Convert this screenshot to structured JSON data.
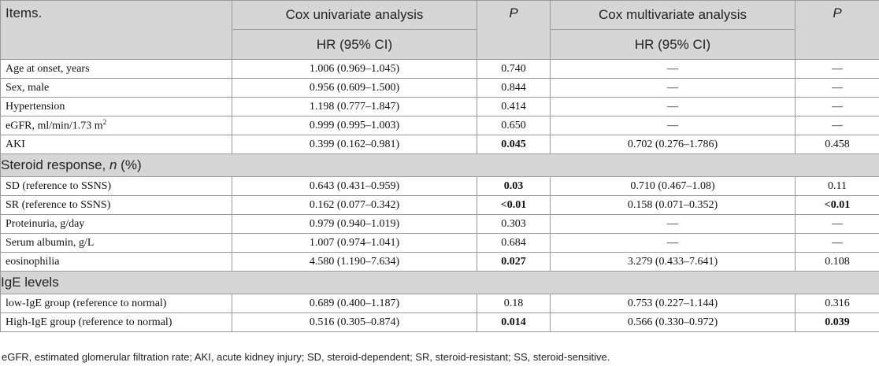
{
  "header": {
    "items": "Items.",
    "uni": "Cox univariate analysis",
    "p1": "P",
    "multi": "Cox multivariate analysis",
    "p2": "P",
    "hr1": "HR (95% CI)",
    "hr2": "HR (95% CI)"
  },
  "rows": [
    {
      "item": "Age at onset, years",
      "uni": "1.006 (0.969–1.045)",
      "p1": "0.740",
      "multi": "—",
      "p2": "—"
    },
    {
      "item": "Sex, male",
      "uni": "0.956 (0.609–1.500)",
      "p1": "0.844",
      "multi": "—",
      "p2": "—"
    },
    {
      "item": "Hypertension",
      "uni": "1.198 (0.777–1.847)",
      "p1": "0.414",
      "multi": "—",
      "p2": "—"
    },
    {
      "item_main": "eGFR, ml/min/1.73 m",
      "item_sup": "2",
      "uni": "0.999 (0.995–1.003)",
      "p1": "0.650",
      "multi": "—",
      "p2": "—"
    },
    {
      "item": "AKI",
      "uni": "0.399 (0.162–0.981)",
      "p1": "0.045",
      "multi": "0.702 (0.276–1.786)",
      "p2": "0.458"
    }
  ],
  "section1": {
    "pre": "Steroid response, ",
    "n": "n",
    "post": " (%)"
  },
  "rows2": [
    {
      "item": "SD (reference to SSNS)",
      "uni": "0.643 (0.431–0.959)",
      "p1": "0.03",
      "multi": "0.710 (0.467–1.08)",
      "p2": "0.11"
    },
    {
      "item": "SR (reference to SSNS)",
      "uni": "0.162 (0.077–0.342)",
      "p1": "<0.01",
      "multi": "0.158 (0.071–0.352)",
      "p2": "<0.01"
    },
    {
      "item": "Proteinuria, g/day",
      "uni": "0.979 (0.940–1.019)",
      "p1": "0.303",
      "multi": "—",
      "p2": "—"
    },
    {
      "item": "Serum albumin, g/L",
      "uni": "1.007 (0.974–1.041)",
      "p1": "0.684",
      "multi": "—",
      "p2": "—"
    },
    {
      "item": "eosinophilia",
      "uni": "4.580 (1.190–7.634)",
      "p1": "0.027",
      "multi": "3.279 (0.433–7.641)",
      "p2": "0.108"
    }
  ],
  "section2": "IgE levels",
  "rows3": [
    {
      "item": "low-IgE group (reference to normal)",
      "uni": "0.689 (0.400–1.187)",
      "p1": "0.18",
      "multi": "0.753 (0.227–1.144)",
      "p2": "0.316"
    },
    {
      "item": "High-IgE group (reference to normal)",
      "uni": "0.516 (0.305–0.874)",
      "p1": "0.014",
      "multi": "0.566 (0.330–0.972)",
      "p2": "0.039"
    }
  ],
  "footnote": "eGFR, estimated glomerular filtration rate; AKI, acute kidney injury; SD, steroid-dependent; SR, steroid-resistant; SS, steroid-sensitive."
}
